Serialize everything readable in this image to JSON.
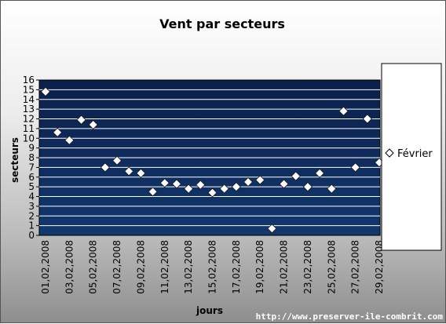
{
  "chart_data": {
    "type": "scatter",
    "title": "Vent par secteurs",
    "xlabel": "jours",
    "ylabel": "secteurs",
    "ylim": [
      0,
      16
    ],
    "yticks": [
      "0",
      "1",
      "2",
      "3",
      "4",
      "5",
      "6",
      "7",
      "8",
      "9",
      "10",
      "11",
      "12",
      "13",
      "14",
      "15",
      "16"
    ],
    "categories": [
      "01,02,2008",
      "02,02,2008",
      "03,02,2008",
      "04,02,2008",
      "05,02,2008",
      "06,02,2008",
      "07,02,2008",
      "08,02,2008",
      "09,02,2008",
      "10,02,2008",
      "11,02,2008",
      "12,02,2008",
      "13,02,2008",
      "14,02,2008",
      "15,02,2008",
      "16,02,2008",
      "17,02,2008",
      "18,02,2008",
      "19,02,2008",
      "20,02,2008",
      "21,02,2008",
      "22,02,2008",
      "23,02,2008",
      "24,02,2008",
      "25,02,2008",
      "26,02,2008",
      "27,02,2008",
      "28,02,2008",
      "29,02,2008"
    ],
    "xtick_labels": [
      "01,02,2008",
      "03,02,2008",
      "05,02,2008",
      "07,02,2008",
      "09,02,2008",
      "11,02,2008",
      "13,02,2008",
      "15,02,2008",
      "17,02,2008",
      "19,02,2008",
      "21,02,2008",
      "23,02,2008",
      "25,02,2008",
      "27,02,2008",
      "29,02,2008"
    ],
    "series": [
      {
        "name": "Février",
        "marker": "diamond",
        "values": [
          14.8,
          10.6,
          9.8,
          11.9,
          11.4,
          7.0,
          7.7,
          6.6,
          6.4,
          4.5,
          5.4,
          5.3,
          4.8,
          5.2,
          4.4,
          4.8,
          5.0,
          5.5,
          5.7,
          0.7,
          5.3,
          6.1,
          5.0,
          6.4,
          4.8,
          12.8,
          7.0,
          12.0,
          7.5
        ]
      }
    ],
    "grid": true,
    "legend": "right"
  },
  "colors": {
    "plot_background_top": "#0b1f4a",
    "plot_background_bottom": "#12386e",
    "gridline": "#ffffff",
    "marker_fill": "#ffffff",
    "marker_stroke": "#1a1a1a"
  },
  "footer": "http://www.preserver-ile-combrit.com"
}
